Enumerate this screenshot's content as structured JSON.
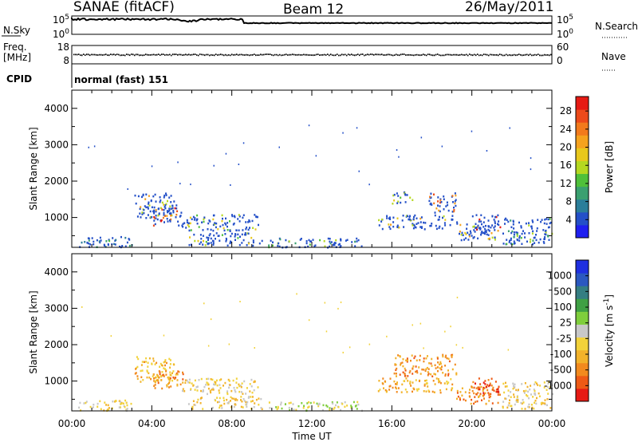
{
  "header": {
    "station": "SANAE (fitACF)",
    "beam": "Beam 12",
    "date": "26/May/2011"
  },
  "top_panels": {
    "nsky_label": "N.Sky",
    "nsky_ticks": [
      "10^5",
      "10^0"
    ],
    "nsearch_label": "N.Search",
    "nsearch_ticks": [
      "10^5",
      "10^0"
    ],
    "freq_label_1": "Freq.",
    "freq_label_2": "[MHz]",
    "freq_ticks": [
      "18",
      "8"
    ],
    "nave_label": "Nave",
    "nave_ticks": [
      "60",
      "0"
    ],
    "cpid_label": "CPID",
    "cpid_text": "normal (fast) 151"
  },
  "chart_data": [
    {
      "type": "heatmap",
      "name": "power",
      "ylabel": "Slant Range [km]",
      "yticks": [
        1000,
        2000,
        3000,
        4000
      ],
      "ylim": [
        180,
        4500
      ],
      "xlim_hours": [
        0,
        24
      ],
      "colorbar": {
        "label": "Power [dB]",
        "ticks": [
          "4",
          "8",
          "12",
          "16",
          "20",
          "24",
          "28"
        ],
        "colors": [
          "#1f1ff0",
          "#2450c8",
          "#2b7e9a",
          "#3aa070",
          "#4fc03a",
          "#b5d820",
          "#e8c81c",
          "#f5a21e",
          "#f27a1c",
          "#ec4a1a",
          "#e61a14"
        ]
      },
      "regions": [
        {
          "t": [
            3.1,
            5.2
          ],
          "r": [
            1000,
            1700
          ],
          "v": 6
        },
        {
          "t": [
            4.0,
            5.6
          ],
          "r": [
            800,
            1300
          ],
          "v": 9
        },
        {
          "t": [
            5.5,
            9.3
          ],
          "r": [
            650,
            1100
          ],
          "v": 5
        },
        {
          "t": [
            5.8,
            9.5
          ],
          "r": [
            250,
            600
          ],
          "v": 5
        },
        {
          "t": [
            9.8,
            14.5
          ],
          "r": [
            200,
            450
          ],
          "v": 4
        },
        {
          "t": [
            15.3,
            19.0
          ],
          "r": [
            700,
            1100
          ],
          "v": 6
        },
        {
          "t": [
            17.8,
            19.2
          ],
          "r": [
            1150,
            1700
          ],
          "v": 8
        },
        {
          "t": [
            19.2,
            21.3
          ],
          "r": [
            400,
            900
          ],
          "v": 6
        },
        {
          "t": [
            20.0,
            21.4
          ],
          "r": [
            600,
            1100
          ],
          "v": 11
        },
        {
          "t": [
            16.0,
            17.0
          ],
          "r": [
            1400,
            1750
          ],
          "v": 5
        },
        {
          "t": [
            21.5,
            24.0
          ],
          "r": [
            250,
            1000
          ],
          "v": 4
        },
        {
          "t": [
            0.3,
            3.0
          ],
          "r": [
            200,
            500
          ],
          "v": 3
        }
      ]
    },
    {
      "type": "heatmap",
      "name": "velocity",
      "ylabel": "Slant Range [km]",
      "yticks": [
        1000,
        2000,
        3000,
        4000
      ],
      "ylim": [
        180,
        4500
      ],
      "xlim_hours": [
        0,
        24
      ],
      "xticks": [
        "00:00",
        "04:00",
        "08:00",
        "12:00",
        "16:00",
        "20:00",
        "00:00"
      ],
      "xlabel": "Time UT",
      "colorbar": {
        "label": "Velocity  [m s^-1]",
        "ticks": [
          "1000",
          "500",
          "100",
          "25",
          "-25",
          "-100",
          "-500",
          "-1000"
        ],
        "colors": [
          "#1f2fe0",
          "#2b58c0",
          "#357e82",
          "#3fa044",
          "#7fce3c",
          "#c8c8c8",
          "#f2d23a",
          "#f2b22a",
          "#f28a1e",
          "#ee5a16",
          "#e61a14"
        ]
      },
      "regions": [
        {
          "t": [
            3.1,
            5.2
          ],
          "r": [
            1000,
            1700
          ],
          "v": 7
        },
        {
          "t": [
            4.0,
            5.6
          ],
          "r": [
            800,
            1300
          ],
          "v": 8
        },
        {
          "t": [
            5.5,
            9.3
          ],
          "r": [
            650,
            1100
          ],
          "v": 6
        },
        {
          "t": [
            5.8,
            9.5
          ],
          "r": [
            250,
            600
          ],
          "v": 6
        },
        {
          "t": [
            9.8,
            14.5
          ],
          "r": [
            200,
            450
          ],
          "v": 5
        },
        {
          "t": [
            15.3,
            19.0
          ],
          "r": [
            700,
            1100
          ],
          "v": 7
        },
        {
          "t": [
            16.0,
            19.2
          ],
          "r": [
            1150,
            1750
          ],
          "v": 8
        },
        {
          "t": [
            19.2,
            21.3
          ],
          "r": [
            400,
            900
          ],
          "v": 8
        },
        {
          "t": [
            20.0,
            21.4
          ],
          "r": [
            600,
            1100
          ],
          "v": 9
        },
        {
          "t": [
            21.5,
            24.0
          ],
          "r": [
            250,
            1000
          ],
          "v": 6
        },
        {
          "t": [
            0.3,
            3.0
          ],
          "r": [
            200,
            500
          ],
          "v": 6
        }
      ]
    }
  ]
}
